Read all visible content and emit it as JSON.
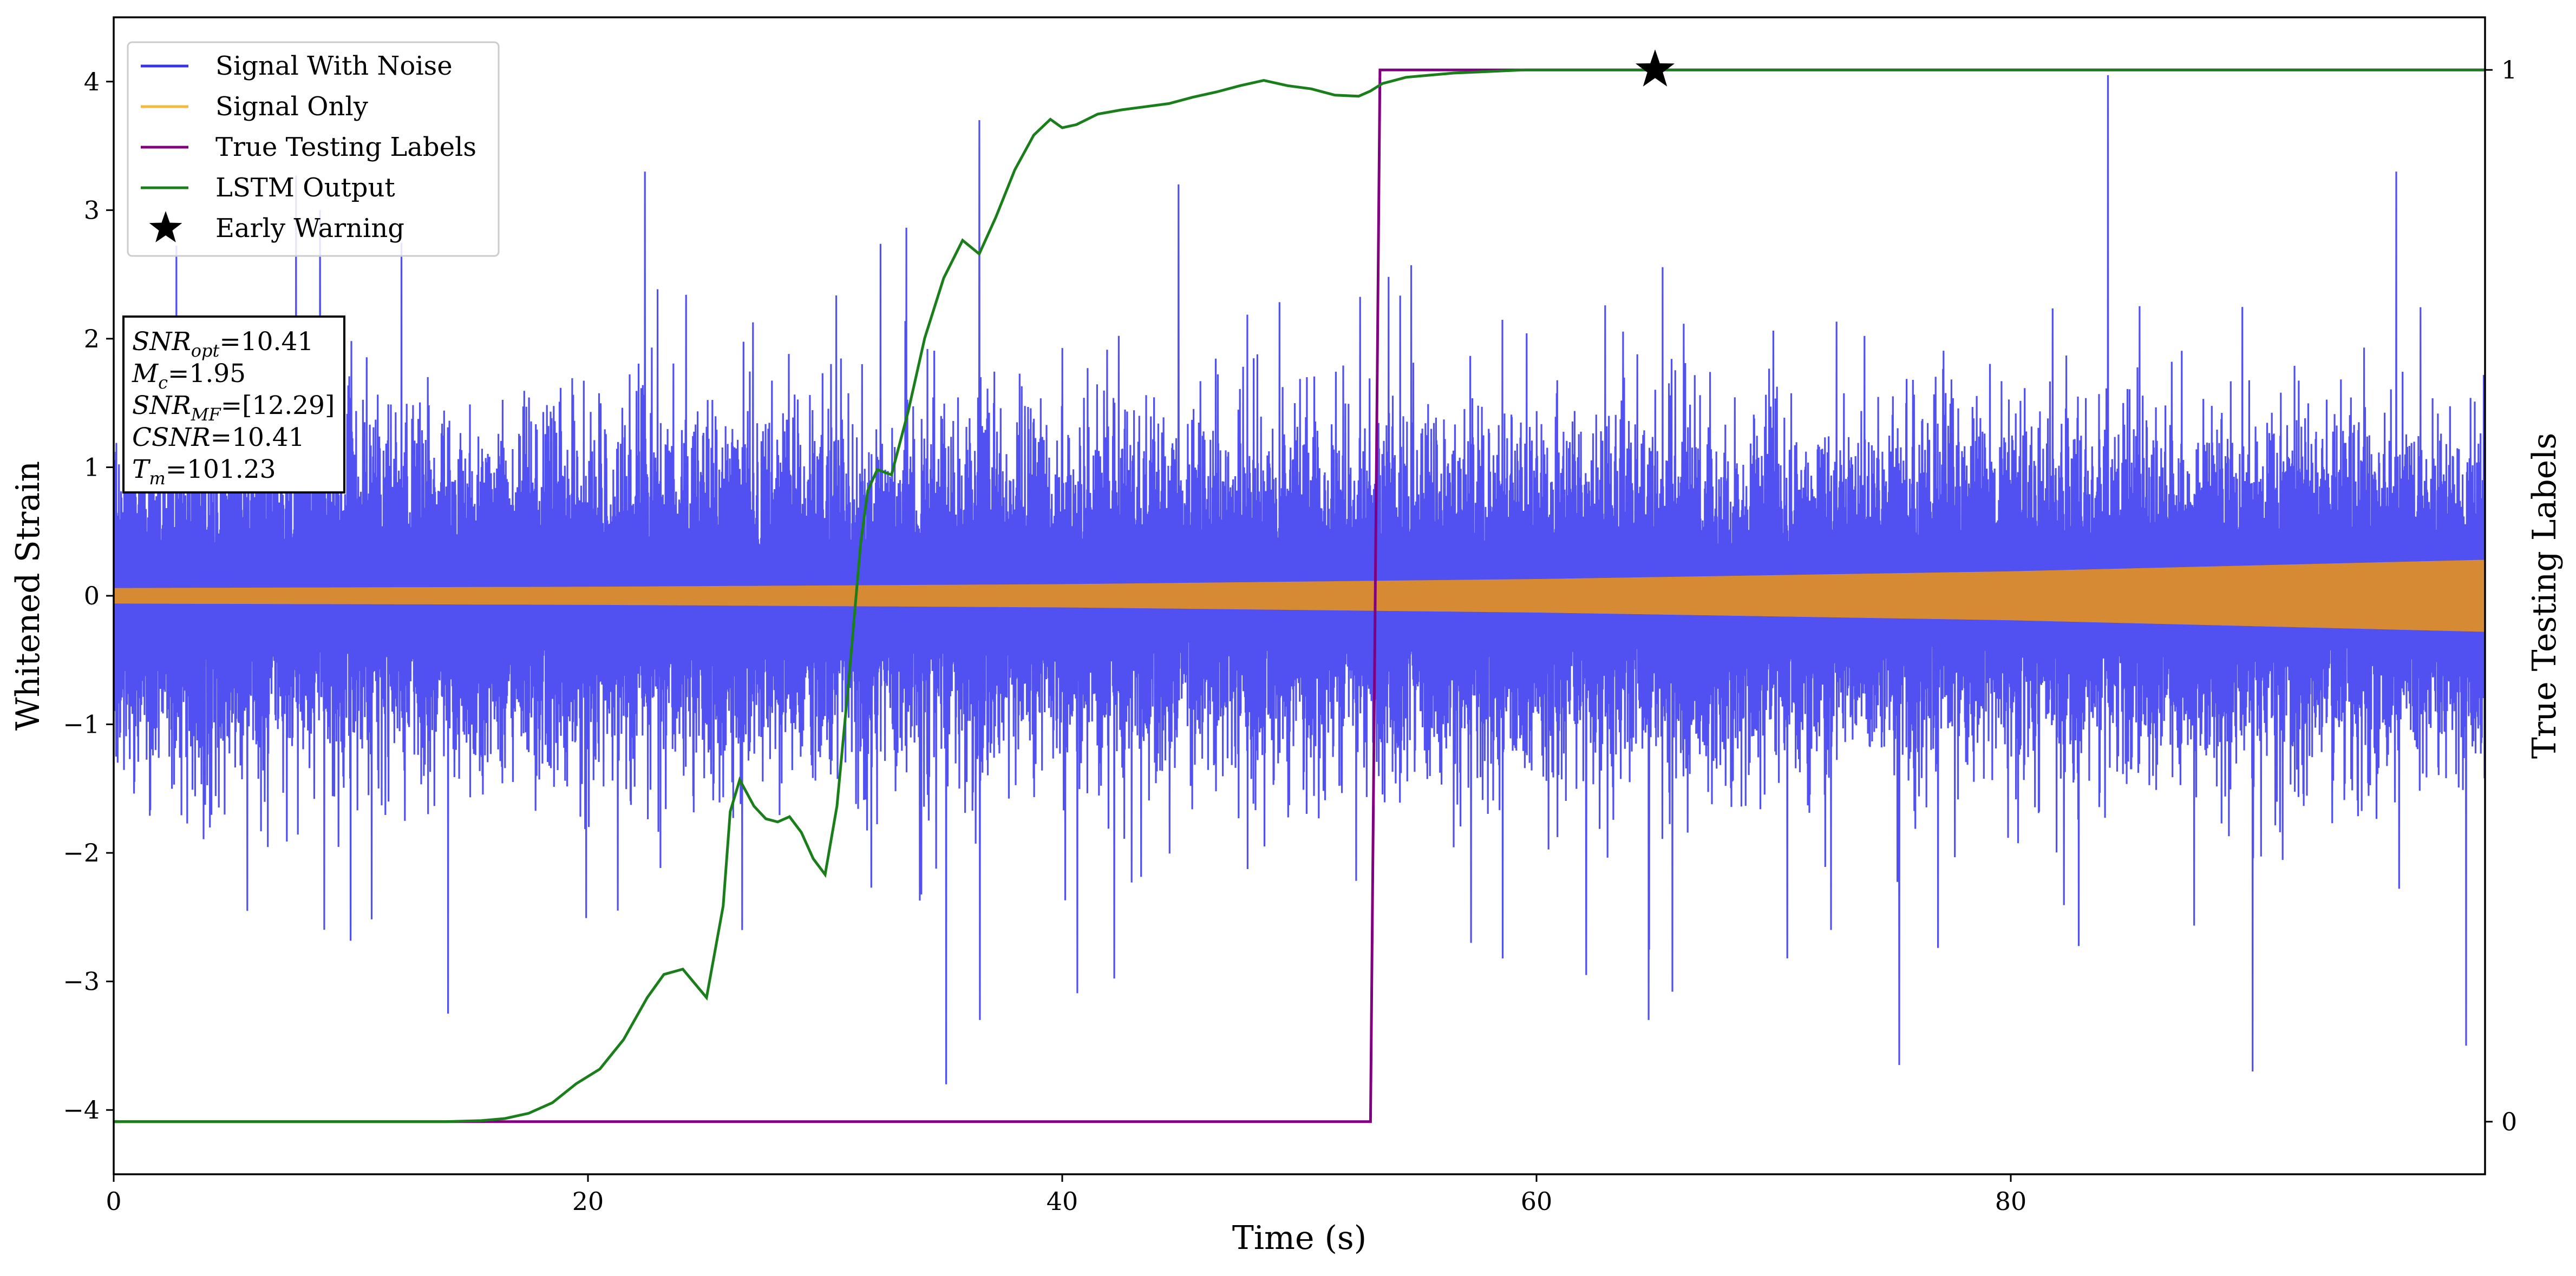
{
  "chart_data": {
    "type": "line",
    "xlabel": "Time (s)",
    "ylabel": "Whitened Strain",
    "y2label": "True Testing Labels",
    "xlim": [
      0,
      100
    ],
    "ylim": [
      -4.5,
      4.5
    ],
    "y2lim": [
      -0.05,
      1.05
    ],
    "x_ticks": [
      0,
      20,
      40,
      60,
      80
    ],
    "y_ticks": [
      -4,
      -3,
      -2,
      -1,
      0,
      1,
      2,
      3,
      4
    ],
    "y_tick_labels": [
      "−4",
      "−3",
      "−2",
      "−1",
      "0",
      "1",
      "2",
      "3",
      "4"
    ],
    "y2_ticks": [
      0,
      1
    ],
    "grid": false,
    "legend": {
      "placement": "top-left",
      "entries": [
        {
          "label": "Signal With Noise",
          "color": "#3333ee",
          "marker": "line"
        },
        {
          "label": "Signal Only",
          "color": "#f6b93b",
          "marker": "line"
        },
        {
          "label": "True Testing Labels",
          "color": "#800080",
          "marker": "line"
        },
        {
          "label": "LSTM Output",
          "color": "#1a7f1a",
          "marker": "line"
        },
        {
          "label": "Early Warning",
          "color": "#000000",
          "marker": "star"
        }
      ]
    },
    "annotation": {
      "lines": [
        {
          "main": "SNR",
          "sub": "opt",
          "value": "=10.41"
        },
        {
          "main": "M",
          "sub": "c",
          "value": "=1.95"
        },
        {
          "main": "SNR",
          "sub": "MF",
          "value": "=[12.29]"
        },
        {
          "main": "CSNR",
          "sub": "",
          "value": "=10.41"
        },
        {
          "main": "T",
          "sub": "m",
          "value": "=101.23"
        }
      ]
    },
    "series": [
      {
        "name": "Signal With Noise",
        "axis": "left",
        "color": "#3333ee",
        "description": "dense whitened noise, roughly ±2 envelope with spikes",
        "spikes": [
          [
            26.5,
            -2.6
          ],
          [
            35.1,
            -3.8
          ],
          [
            36.5,
            3.7
          ],
          [
            44.9,
            3.2
          ],
          [
            62.1,
            -2.95
          ],
          [
            75.3,
            -3.65
          ],
          [
            84.1,
            4.05
          ],
          [
            90.2,
            -3.7
          ],
          [
            99.2,
            -3.5
          ],
          [
            8.7,
            3.0
          ],
          [
            14.1,
            -3.25
          ]
        ]
      },
      {
        "name": "Signal Only",
        "axis": "left",
        "color": "#f6b93b",
        "description": "chirp with amplitude growing over time",
        "amplitude": [
          [
            0,
            0.06
          ],
          [
            20,
            0.07
          ],
          [
            40,
            0.09
          ],
          [
            60,
            0.13
          ],
          [
            80,
            0.19
          ],
          [
            100,
            0.28
          ]
        ]
      },
      {
        "name": "True Testing Labels",
        "axis": "right",
        "color": "#800080",
        "x": [
          0,
          53.0,
          53.4,
          100
        ],
        "y": [
          0,
          0,
          1,
          1
        ]
      },
      {
        "name": "LSTM Output",
        "axis": "right",
        "color": "#1a7f1a",
        "x": [
          0,
          10,
          14,
          15.5,
          16.5,
          17.5,
          18.5,
          19.5,
          20.5,
          21.5,
          22.5,
          23.2,
          24.0,
          25.0,
          25.7,
          26.0,
          26.4,
          27.0,
          27.5,
          28.0,
          28.5,
          29.0,
          29.5,
          30.0,
          30.5,
          31.0,
          31.5,
          31.8,
          32.2,
          32.8,
          33.5,
          34.2,
          35.0,
          35.8,
          36.5,
          37.2,
          38.0,
          38.8,
          39.5,
          40.0,
          40.6,
          41.5,
          42.5,
          43.5,
          44.5,
          45.5,
          46.5,
          47.5,
          48.5,
          49.5,
          50.5,
          51.5,
          52.5,
          53.0,
          53.5,
          54.5,
          55.5,
          56.5,
          57.5,
          58.5,
          59.5,
          60.5,
          61.5,
          62.5,
          63.5,
          64.5,
          65.5,
          67.0,
          69.0,
          71.0,
          75.0,
          80.0,
          90.0,
          100.0
        ],
        "y": [
          0,
          0,
          0,
          0.001,
          0.003,
          0.008,
          0.018,
          0.036,
          0.05,
          0.078,
          0.118,
          0.14,
          0.145,
          0.118,
          0.205,
          0.295,
          0.325,
          0.3,
          0.288,
          0.285,
          0.29,
          0.275,
          0.25,
          0.235,
          0.3,
          0.42,
          0.55,
          0.6,
          0.62,
          0.615,
          0.675,
          0.745,
          0.802,
          0.838,
          0.825,
          0.86,
          0.905,
          0.938,
          0.953,
          0.945,
          0.948,
          0.958,
          0.962,
          0.965,
          0.968,
          0.974,
          0.979,
          0.985,
          0.99,
          0.985,
          0.982,
          0.976,
          0.975,
          0.98,
          0.987,
          0.993,
          0.995,
          0.997,
          0.998,
          0.999,
          1.0,
          1.0,
          1.0,
          1.0,
          1.0,
          1.0,
          1.0,
          1.0,
          1.0,
          1.0,
          1.0,
          1.0,
          1.0,
          1.0
        ]
      },
      {
        "name": "Early Warning",
        "axis": "right",
        "color": "#000000",
        "type": "scatter",
        "x": [
          65.0
        ],
        "y": [
          1.0
        ]
      }
    ]
  }
}
